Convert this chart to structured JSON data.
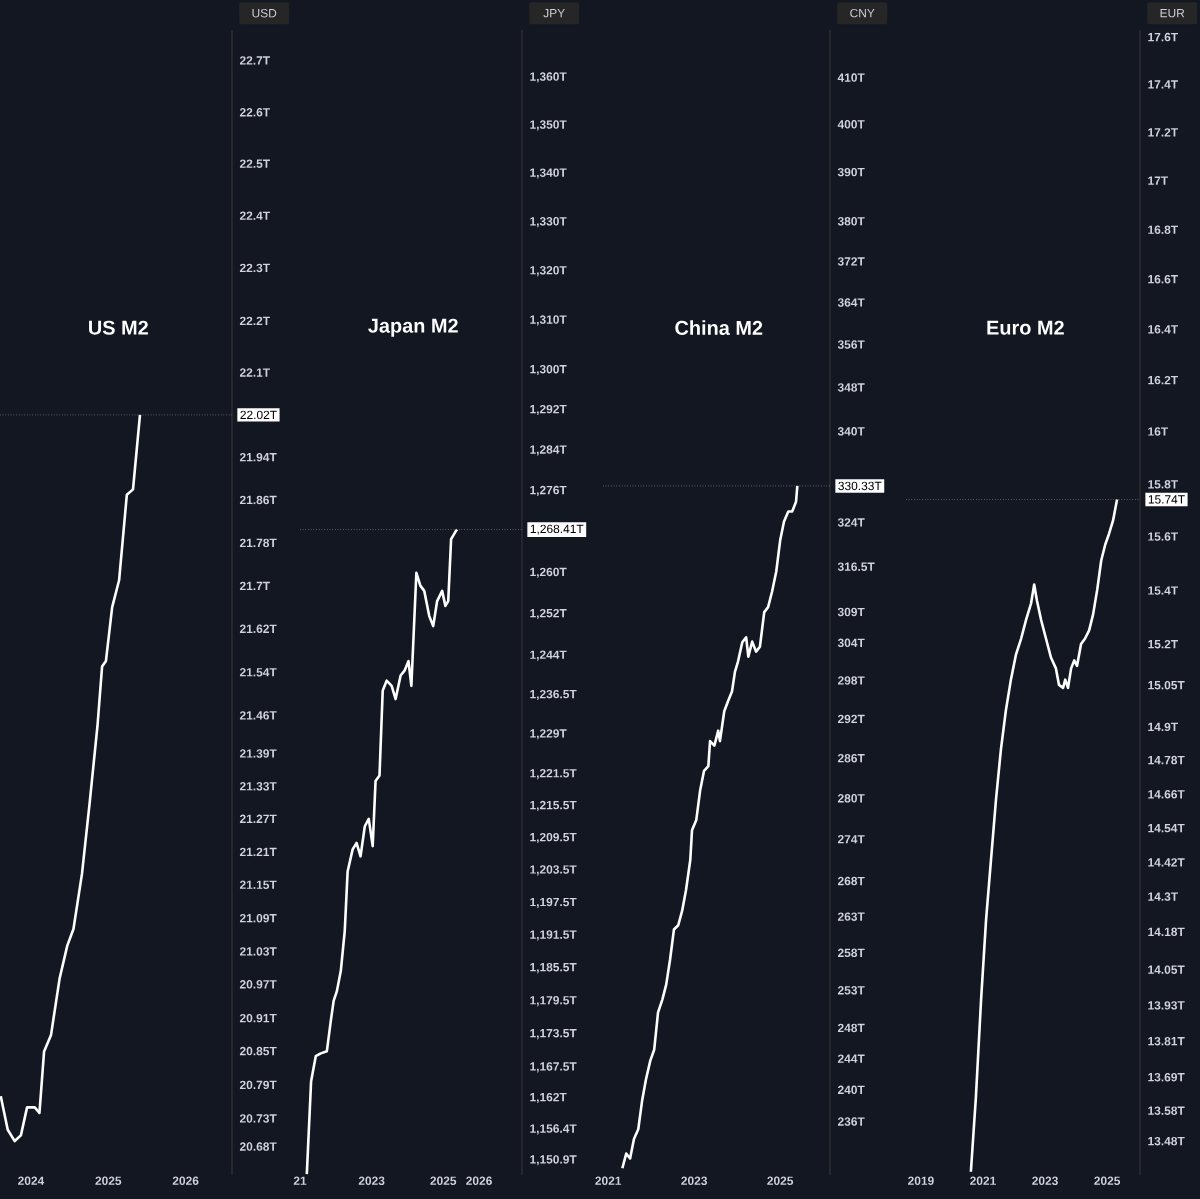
{
  "chart_data": [
    {
      "type": "line",
      "title": "US M2",
      "ylabel": "USD",
      "log": "y",
      "xlim": [
        2023.6,
        2026.6
      ],
      "ylim": [
        20.63,
        22.76
      ],
      "xticks": [
        2024,
        2025,
        2026
      ],
      "yticks": [
        {
          "value": 20.68,
          "label": "20.68T"
        },
        {
          "value": 20.73,
          "label": "20.73T"
        },
        {
          "value": 20.79,
          "label": "20.79T"
        },
        {
          "value": 20.85,
          "label": "20.85T"
        },
        {
          "value": 20.91,
          "label": "20.91T"
        },
        {
          "value": 20.97,
          "label": "20.97T"
        },
        {
          "value": 21.03,
          "label": "21.03T"
        },
        {
          "value": 21.09,
          "label": "21.09T"
        },
        {
          "value": 21.15,
          "label": "21.15T"
        },
        {
          "value": 21.21,
          "label": "21.21T"
        },
        {
          "value": 21.27,
          "label": "21.27T"
        },
        {
          "value": 21.33,
          "label": "21.33T"
        },
        {
          "value": 21.39,
          "label": "21.39T"
        },
        {
          "value": 21.46,
          "label": "21.46T"
        },
        {
          "value": 21.54,
          "label": "21.54T"
        },
        {
          "value": 21.62,
          "label": "21.62T"
        },
        {
          "value": 21.7,
          "label": "21.7T"
        },
        {
          "value": 21.78,
          "label": "21.78T"
        },
        {
          "value": 21.86,
          "label": "21.86T"
        },
        {
          "value": 21.94,
          "label": "21.94T"
        },
        {
          "value": 22.1,
          "label": "22.1T"
        },
        {
          "value": 22.2,
          "label": "22.2T"
        },
        {
          "value": 22.3,
          "label": "22.3T"
        },
        {
          "value": 22.4,
          "label": "22.4T"
        },
        {
          "value": 22.5,
          "label": "22.5T"
        },
        {
          "value": 22.6,
          "label": "22.6T"
        },
        {
          "value": 22.7,
          "label": "22.7T"
        }
      ],
      "ref_lines": [
        {
          "axis": "y",
          "value": 22.02,
          "label": "22.02T",
          "line_style": "dotted"
        }
      ],
      "series": [
        {
          "color": "#ffffff",
          "x": [
            2023.61,
            2023.7,
            2023.79,
            2023.87,
            2023.95,
            2024.05,
            2024.11,
            2024.17,
            2024.26,
            2024.37,
            2024.47,
            2024.55,
            2024.66,
            2024.76,
            2024.86,
            2024.92,
            2024.97,
            2025.05,
            2025.14,
            2025.24,
            2025.32,
            2025.41
          ],
          "values": [
            20.77,
            20.71,
            20.69,
            20.7,
            20.75,
            20.75,
            20.74,
            20.85,
            20.88,
            20.98,
            21.04,
            21.07,
            21.17,
            21.3,
            21.44,
            21.55,
            21.56,
            21.66,
            21.71,
            21.87,
            21.88,
            22.02
          ]
        }
      ]
    },
    {
      "type": "line",
      "title": "Japan M2",
      "ylabel": "JPY",
      "log": "y",
      "xlim": [
        2021.0,
        2027.2
      ],
      "ylim": [
        1148.3,
        1370
      ],
      "xticks": [
        {
          "value": 2021,
          "label": "21"
        },
        2023,
        2025,
        2026
      ],
      "yticks": [
        {
          "value": 1150.9,
          "label": "1,150.9T"
        },
        {
          "value": 1156.4,
          "label": "1,156.4T"
        },
        {
          "value": 1162,
          "label": "1,162T"
        },
        {
          "value": 1167.5,
          "label": "1,167.5T"
        },
        {
          "value": 1173.5,
          "label": "1,173.5T"
        },
        {
          "value": 1179.5,
          "label": "1,179.5T"
        },
        {
          "value": 1185.5,
          "label": "1,185.5T"
        },
        {
          "value": 1191.5,
          "label": "1,191.5T"
        },
        {
          "value": 1197.5,
          "label": "1,197.5T"
        },
        {
          "value": 1203.5,
          "label": "1,203.5T"
        },
        {
          "value": 1209.5,
          "label": "1,209.5T"
        },
        {
          "value": 1215.5,
          "label": "1,215.5T"
        },
        {
          "value": 1221.5,
          "label": "1,221.5T"
        },
        {
          "value": 1229,
          "label": "1,229T"
        },
        {
          "value": 1236.5,
          "label": "1,236.5T"
        },
        {
          "value": 1244,
          "label": "1,244T"
        },
        {
          "value": 1252,
          "label": "1,252T"
        },
        {
          "value": 1260,
          "label": "1,260T"
        },
        {
          "value": 1276,
          "label": "1,276T"
        },
        {
          "value": 1284,
          "label": "1,284T"
        },
        {
          "value": 1292,
          "label": "1,292T"
        },
        {
          "value": 1300,
          "label": "1,300T"
        },
        {
          "value": 1310,
          "label": "1,310T"
        },
        {
          "value": 1320,
          "label": "1,320T"
        },
        {
          "value": 1330,
          "label": "1,330T"
        },
        {
          "value": 1340,
          "label": "1,340T"
        },
        {
          "value": 1350,
          "label": "1,350T"
        },
        {
          "value": 1360,
          "label": "1,360T"
        }
      ],
      "ref_lines": [
        {
          "axis": "y",
          "value": 1268.41,
          "label": "1,268.41T",
          "line_style": "dotted"
        }
      ],
      "series": [
        {
          "color": "#ffffff",
          "x": [
            2021.19,
            2021.31,
            2021.44,
            2021.58,
            2021.75,
            2021.86,
            2021.94,
            2022.03,
            2022.14,
            2022.25,
            2022.33,
            2022.47,
            2022.58,
            2022.69,
            2022.81,
            2022.92,
            2023.03,
            2023.11,
            2023.22,
            2023.31,
            2023.42,
            2023.56,
            2023.67,
            2023.81,
            2023.92,
            2024.03,
            2024.11,
            2024.25,
            2024.36,
            2024.47,
            2024.61,
            2024.72,
            2024.83,
            2024.97,
            2025.06,
            2025.14,
            2025.22,
            2025.36,
            2025.39
          ],
          "values": [
            1148.4,
            1165.0,
            1169.5,
            1170.0,
            1170.4,
            1175.9,
            1179.5,
            1181.3,
            1185.0,
            1192.3,
            1203.3,
            1207.4,
            1208.6,
            1206.1,
            1211.7,
            1213.1,
            1208.0,
            1220.2,
            1221.2,
            1237.3,
            1239.2,
            1238.2,
            1235.7,
            1240.2,
            1241.1,
            1243.0,
            1238.2,
            1260.0,
            1257.5,
            1256.5,
            1251.6,
            1249.7,
            1254.5,
            1256.5,
            1253.6,
            1254.5,
            1266.6,
            1268.2,
            1268.41
          ]
        }
      ]
    },
    {
      "type": "line",
      "title": "China M2",
      "ylabel": "CNY",
      "log": "y",
      "xlim": [
        2020.88,
        2026.16
      ],
      "ylim": [
        229.4,
        420.5
      ],
      "xticks": [
        2021,
        2023,
        2025
      ],
      "yticks": [
        {
          "value": 236,
          "label": "236T"
        },
        {
          "value": 240,
          "label": "240T"
        },
        {
          "value": 244,
          "label": "244T"
        },
        {
          "value": 248,
          "label": "248T"
        },
        {
          "value": 253,
          "label": "253T"
        },
        {
          "value": 258,
          "label": "258T"
        },
        {
          "value": 263,
          "label": "263T"
        },
        {
          "value": 268,
          "label": "268T"
        },
        {
          "value": 274,
          "label": "274T"
        },
        {
          "value": 280,
          "label": "280T"
        },
        {
          "value": 286,
          "label": "286T"
        },
        {
          "value": 292,
          "label": "292T"
        },
        {
          "value": 298,
          "label": "298T"
        },
        {
          "value": 304,
          "label": "304T"
        },
        {
          "value": 309,
          "label": "309T"
        },
        {
          "value": 316.5,
          "label": "316.5T"
        },
        {
          "value": 324,
          "label": "324T"
        },
        {
          "value": 340,
          "label": "340T"
        },
        {
          "value": 348,
          "label": "348T"
        },
        {
          "value": 356,
          "label": "356T"
        },
        {
          "value": 364,
          "label": "364T"
        },
        {
          "value": 372,
          "label": "372T"
        },
        {
          "value": 380,
          "label": "380T"
        },
        {
          "value": 390,
          "label": "390T"
        },
        {
          "value": 400,
          "label": "400T"
        },
        {
          "value": 410,
          "label": "410T"
        }
      ],
      "ref_lines": [
        {
          "axis": "y",
          "value": 330.33,
          "label": "330.33T",
          "line_style": "dotted"
        }
      ],
      "series": [
        {
          "color": "#ffffff",
          "x": [
            2021.33,
            2021.42,
            2021.51,
            2021.6,
            2021.7,
            2021.79,
            2021.88,
            2021.98,
            2022.07,
            2022.16,
            2022.26,
            2022.35,
            2022.44,
            2022.53,
            2022.63,
            2022.72,
            2022.81,
            2022.91,
            2022.95,
            2023.05,
            2023.14,
            2023.23,
            2023.33,
            2023.37,
            2023.47,
            2023.56,
            2023.6,
            2023.7,
            2023.79,
            2023.88,
            2023.95,
            2024.02,
            2024.12,
            2024.21,
            2024.26,
            2024.35,
            2024.44,
            2024.53,
            2024.63,
            2024.72,
            2024.81,
            2024.91,
            2025.0,
            2025.09,
            2025.19,
            2025.28,
            2025.37,
            2025.4
          ],
          "values": [
            230.2,
            232.0,
            231.4,
            233.8,
            235.0,
            238.6,
            241.3,
            243.7,
            245.1,
            250.0,
            251.7,
            253.7,
            257.1,
            261.2,
            261.8,
            263.8,
            266.7,
            271.0,
            275.3,
            276.8,
            281.2,
            284.1,
            284.8,
            288.6,
            287.9,
            290.2,
            288.6,
            293.2,
            294.8,
            296.3,
            299.4,
            301.0,
            304.1,
            304.9,
            301.8,
            304.2,
            302.6,
            303.4,
            309.0,
            309.8,
            312.3,
            315.7,
            320.9,
            324.2,
            325.9,
            325.9,
            327.6,
            330.33
          ]
        }
      ]
    },
    {
      "type": "line",
      "title": "Euro M2",
      "ylabel": "EUR",
      "log": "y",
      "xlim": [
        2018.52,
        2026.06
      ],
      "ylim": [
        13.37,
        17.63
      ],
      "xticks": [
        2019,
        2021,
        2023,
        2025
      ],
      "yticks": [
        {
          "value": 13.48,
          "label": "13.48T"
        },
        {
          "value": 13.58,
          "label": "13.58T"
        },
        {
          "value": 13.69,
          "label": "13.69T"
        },
        {
          "value": 13.81,
          "label": "13.81T"
        },
        {
          "value": 13.93,
          "label": "13.93T"
        },
        {
          "value": 14.05,
          "label": "14.05T"
        },
        {
          "value": 14.18,
          "label": "14.18T"
        },
        {
          "value": 14.3,
          "label": "14.3T"
        },
        {
          "value": 14.42,
          "label": "14.42T"
        },
        {
          "value": 14.54,
          "label": "14.54T"
        },
        {
          "value": 14.66,
          "label": "14.66T"
        },
        {
          "value": 14.78,
          "label": "14.78T"
        },
        {
          "value": 14.9,
          "label": "14.9T"
        },
        {
          "value": 15.05,
          "label": "15.05T"
        },
        {
          "value": 15.2,
          "label": "15.2T"
        },
        {
          "value": 15.4,
          "label": "15.4T"
        },
        {
          "value": 15.6,
          "label": "15.6T"
        },
        {
          "value": 15.8,
          "label": "15.8T"
        },
        {
          "value": 16,
          "label": "16T"
        },
        {
          "value": 16.2,
          "label": "16.2T"
        },
        {
          "value": 16.4,
          "label": "16.4T"
        },
        {
          "value": 16.6,
          "label": "16.6T"
        },
        {
          "value": 16.8,
          "label": "16.8T"
        },
        {
          "value": 17,
          "label": "17T"
        },
        {
          "value": 17.2,
          "label": "17.2T"
        },
        {
          "value": 17.4,
          "label": "17.4T"
        },
        {
          "value": 17.6,
          "label": "17.6T"
        }
      ],
      "ref_lines": [
        {
          "axis": "y",
          "value": 15.74,
          "label": "15.74T",
          "line_style": "dotted"
        }
      ],
      "series": [
        {
          "color": "#ffffff",
          "x": [
            2020.61,
            2020.77,
            2020.94,
            2021.1,
            2021.26,
            2021.42,
            2021.58,
            2021.74,
            2021.9,
            2022.06,
            2022.23,
            2022.39,
            2022.55,
            2022.65,
            2022.74,
            2022.87,
            2023.03,
            2023.19,
            2023.35,
            2023.45,
            2023.58,
            2023.65,
            2023.74,
            2023.84,
            2023.94,
            2024.03,
            2024.16,
            2024.29,
            2024.42,
            2024.55,
            2024.68,
            2024.81,
            2024.94,
            2025.06,
            2025.19,
            2025.32
          ],
          "values": [
            13.38,
            13.62,
            13.95,
            14.22,
            14.43,
            14.64,
            14.82,
            14.96,
            15.07,
            15.16,
            15.22,
            15.29,
            15.35,
            15.42,
            15.36,
            15.29,
            15.22,
            15.15,
            15.11,
            15.05,
            15.04,
            15.07,
            15.04,
            15.11,
            15.14,
            15.12,
            15.2,
            15.22,
            15.25,
            15.31,
            15.4,
            15.51,
            15.57,
            15.61,
            15.66,
            15.74
          ]
        }
      ]
    }
  ]
}
